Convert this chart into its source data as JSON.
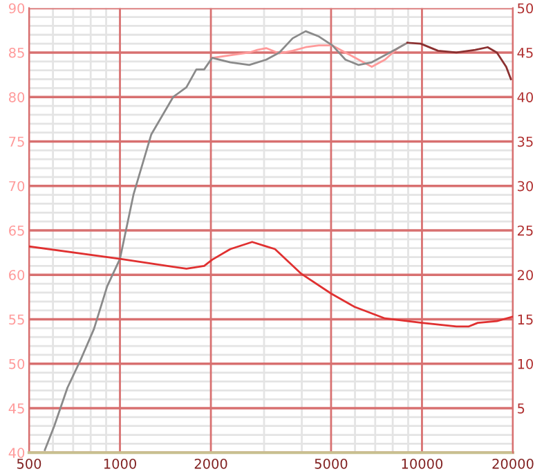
{
  "chart_data": {
    "type": "line",
    "log": "x",
    "grid": true,
    "marker": "none",
    "line_style": "solid",
    "xlim": [
      500,
      20000
    ],
    "xticks": [
      500,
      {
        "value": 600,
        "label": null
      },
      {
        "value": 700,
        "label": null
      },
      {
        "value": 800,
        "label": null
      },
      {
        "value": 900,
        "label": null
      },
      1000,
      2000,
      {
        "value": 3000,
        "label": null
      },
      {
        "value": 4000,
        "label": null
      },
      5000,
      {
        "value": 6000,
        "label": null
      },
      {
        "value": 7000,
        "label": null
      },
      {
        "value": 8000,
        "label": null
      },
      {
        "value": 9000,
        "label": null
      },
      10000,
      20000
    ],
    "ylim": [
      40,
      90
    ],
    "yticks": [
      40,
      {
        "value": 41,
        "label": null
      },
      {
        "value": 42,
        "label": null
      },
      {
        "value": 43,
        "label": null
      },
      {
        "value": 44,
        "label": null
      },
      45,
      {
        "value": 46,
        "label": null
      },
      {
        "value": 47,
        "label": null
      },
      {
        "value": 48,
        "label": null
      },
      {
        "value": 49,
        "label": null
      },
      50,
      {
        "value": 51,
        "label": null
      },
      {
        "value": 52,
        "label": null
      },
      {
        "value": 53,
        "label": null
      },
      {
        "value": 54,
        "label": null
      },
      55,
      {
        "value": 56,
        "label": null
      },
      {
        "value": 57,
        "label": null
      },
      {
        "value": 58,
        "label": null
      },
      {
        "value": 59,
        "label": null
      },
      60,
      {
        "value": 61,
        "label": null
      },
      {
        "value": 62,
        "label": null
      },
      {
        "value": 63,
        "label": null
      },
      {
        "value": 64,
        "label": null
      },
      65,
      {
        "value": 66,
        "label": null
      },
      {
        "value": 67,
        "label": null
      },
      {
        "value": 68,
        "label": null
      },
      {
        "value": 69,
        "label": null
      },
      70,
      {
        "value": 71,
        "label": null
      },
      {
        "value": 72,
        "label": null
      },
      {
        "value": 73,
        "label": null
      },
      {
        "value": 74,
        "label": null
      },
      75,
      {
        "value": 76,
        "label": null
      },
      {
        "value": 77,
        "label": null
      },
      {
        "value": 78,
        "label": null
      },
      {
        "value": 79,
        "label": null
      },
      80,
      {
        "value": 81,
        "label": null
      },
      {
        "value": 82,
        "label": null
      },
      {
        "value": 83,
        "label": null
      },
      {
        "value": 84,
        "label": null
      },
      85,
      {
        "value": 86,
        "label": null
      },
      {
        "value": 87,
        "label": null
      },
      {
        "value": 88,
        "label": null
      },
      {
        "value": 89,
        "label": null
      },
      90
    ],
    "y2lim": [
      0,
      50
    ],
    "y2ticks": [
      5,
      10,
      15,
      20,
      25,
      30,
      35,
      40,
      45,
      50
    ],
    "series": [
      {
        "color": "#ff9a9a",
        "x": [
          2020,
          2320,
          2680,
          2850,
          3050,
          3370,
          3730,
          4120,
          4560,
          5050,
          5580,
          6170,
          6820,
          7540,
          8330,
          8950
        ],
        "values": [
          84.4,
          84.7,
          85.0,
          85.3,
          85.5,
          84.9,
          85.2,
          85.6,
          85.8,
          85.8,
          85.0,
          84.2,
          83.4,
          84.2,
          85.5,
          86.1
        ]
      },
      {
        "color": "#8a8a8a",
        "x": [
          564,
          606,
          670,
          740,
          820,
          907,
          1000,
          1110,
          1270,
          1500,
          1660,
          1790,
          1900,
          2020,
          2320,
          2680,
          3050,
          3370,
          3730,
          4120,
          4560,
          5050,
          5580,
          6170,
          6820,
          7540,
          8330,
          8950
        ],
        "values": [
          40.3,
          43,
          47.3,
          50.4,
          53.9,
          58.7,
          61.8,
          69.1,
          75.8,
          80.0,
          81.1,
          83.1,
          83.1,
          84.4,
          83.9,
          83.6,
          84.2,
          85.0,
          86.6,
          87.4,
          86.8,
          85.8,
          84.2,
          83.6,
          83.9,
          84.7,
          85.5,
          86.1
        ]
      },
      {
        "color": "#8b3030",
        "x": [
          8950,
          9900,
          11300,
          13000,
          15000,
          16500,
          17700,
          19000,
          19700
        ],
        "values": [
          86.1,
          86.0,
          85.2,
          85.0,
          85.3,
          85.6,
          85.0,
          83.4,
          82.0
        ]
      },
      {
        "color": "#e03030",
        "axis": "y2",
        "x": [
          500,
          1000,
          1500,
          1660,
          1900,
          2020,
          2320,
          2740,
          3050,
          3260,
          3990,
          5000,
          5980,
          7540,
          10000,
          13000,
          14300,
          15300,
          17700,
          20000
        ],
        "values": [
          23.2,
          21.8,
          20.9,
          20.7,
          21.0,
          21.7,
          22.9,
          23.7,
          23.2,
          22.9,
          20.1,
          17.9,
          16.4,
          15.1,
          14.6,
          14.2,
          14.2,
          14.6,
          14.8,
          15.3
        ]
      }
    ]
  }
}
